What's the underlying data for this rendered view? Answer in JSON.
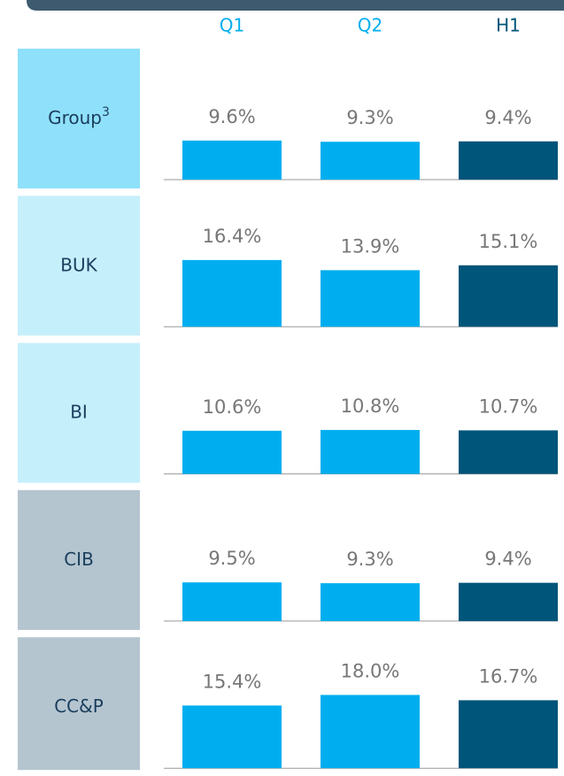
{
  "chart_data": {
    "type": "bar",
    "categories": [
      "Q1",
      "Q2",
      "H1"
    ],
    "category_colors": [
      "#00aeef",
      "#00aeef",
      "#00557a"
    ],
    "ylim": [
      0,
      20
    ],
    "panels": [
      {
        "name": "Group",
        "footnote": "3",
        "color": "#8fe0fb",
        "values": [
          9.6,
          9.3,
          9.4
        ],
        "value_labels": [
          "9.6%",
          "9.3%",
          "9.4%"
        ]
      },
      {
        "name": "BUK",
        "color": "#c6effc",
        "values": [
          16.4,
          13.9,
          15.1
        ],
        "value_labels": [
          "16.4%",
          "13.9%",
          "15.1%"
        ]
      },
      {
        "name": "BI",
        "color": "#c6effc",
        "values": [
          10.6,
          10.8,
          10.7
        ],
        "value_labels": [
          "10.6%",
          "10.8%",
          "10.7%"
        ]
      },
      {
        "name": "CIB",
        "color": "#b4c5d0",
        "values": [
          9.5,
          9.3,
          9.4
        ],
        "value_labels": [
          "9.5%",
          "9.3%",
          "9.4%"
        ]
      },
      {
        "name": "CC&P",
        "color": "#b4c5d0",
        "values": [
          15.4,
          18.0,
          16.7
        ],
        "value_labels": [
          "15.4%",
          "18.0%",
          "16.7%"
        ]
      }
    ]
  }
}
